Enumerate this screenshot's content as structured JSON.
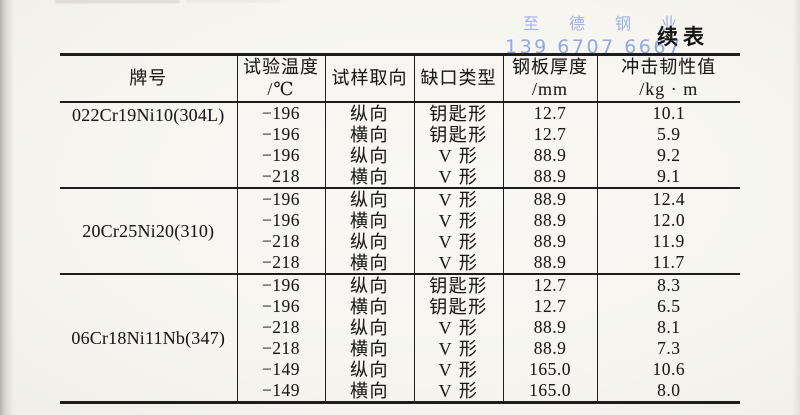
{
  "page": {
    "continued_label": "续表",
    "watermark": {
      "brand": "至 德 钢 业",
      "phone": "139 6707 6667",
      "color": "#9fade2"
    }
  },
  "table": {
    "columns": [
      {
        "label": "牌号",
        "unit": ""
      },
      {
        "label": "试验温度",
        "unit": "/℃"
      },
      {
        "label": "试样取向",
        "unit": ""
      },
      {
        "label": "缺口类型",
        "unit": ""
      },
      {
        "label": "钢板厚度",
        "unit": "/mm"
      },
      {
        "label": "冲击韧性值",
        "unit": "/kg · m"
      }
    ],
    "groups": [
      {
        "grade": "022Cr19Ni10(304L)",
        "rows": [
          {
            "temp": "−196",
            "orient": "纵向",
            "notch": "钥匙形",
            "thickness": "12.7",
            "impact": "10.1"
          },
          {
            "temp": "−196",
            "orient": "横向",
            "notch": "钥匙形",
            "thickness": "12.7",
            "impact": "5.9"
          },
          {
            "temp": "−196",
            "orient": "纵向",
            "notch": "V 形",
            "thickness": "88.9",
            "impact": "9.2"
          },
          {
            "temp": "−218",
            "orient": "横向",
            "notch": "V 形",
            "thickness": "88.9",
            "impact": "9.1"
          }
        ]
      },
      {
        "grade": "20Cr25Ni20(310)",
        "rows": [
          {
            "temp": "−196",
            "orient": "纵向",
            "notch": "V 形",
            "thickness": "88.9",
            "impact": "12.4"
          },
          {
            "temp": "−196",
            "orient": "横向",
            "notch": "V 形",
            "thickness": "88.9",
            "impact": "12.0"
          },
          {
            "temp": "−218",
            "orient": "纵向",
            "notch": "V 形",
            "thickness": "88.9",
            "impact": "11.9"
          },
          {
            "temp": "−218",
            "orient": "横向",
            "notch": "V 形",
            "thickness": "88.9",
            "impact": "11.7"
          }
        ]
      },
      {
        "grade": "06Cr18Ni11Nb(347)",
        "rows": [
          {
            "temp": "−196",
            "orient": "纵向",
            "notch": "钥匙形",
            "thickness": "12.7",
            "impact": "8.3"
          },
          {
            "temp": "−196",
            "orient": "横向",
            "notch": "钥匙形",
            "thickness": "12.7",
            "impact": "6.5"
          },
          {
            "temp": "−218",
            "orient": "纵向",
            "notch": "V 形",
            "thickness": "88.9",
            "impact": "8.1"
          },
          {
            "temp": "−218",
            "orient": "横向",
            "notch": "V 形",
            "thickness": "88.9",
            "impact": "7.3"
          },
          {
            "temp": "−149",
            "orient": "纵向",
            "notch": "V 形",
            "thickness": "165.0",
            "impact": "10.6"
          },
          {
            "temp": "−149",
            "orient": "横向",
            "notch": "V 形",
            "thickness": "165.0",
            "impact": "8.0"
          }
        ]
      }
    ]
  }
}
